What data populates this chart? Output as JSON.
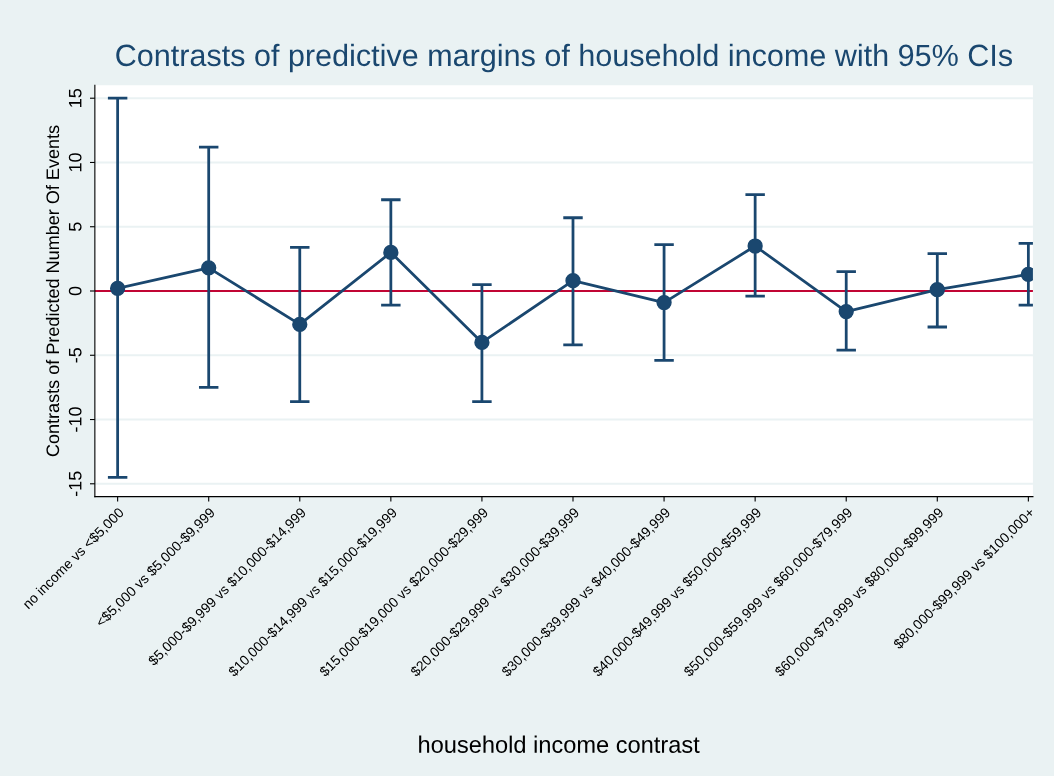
{
  "chart_data": {
    "type": "line",
    "title": "Contrasts of predictive margins of household income with 95% CIs",
    "xlabel": "household income contrast",
    "ylabel": "Contrasts of Predicted Number Of Events",
    "categories": [
      "no income vs <$5,000",
      "<$5,000 vs $5,000-$9,999",
      "$5,000-$9,999 vs $10,000-$14,999",
      "$10,000-$14,999 vs $15,000-$19,999",
      "$15,000-$19,000 vs $20,000-$29,999",
      "$20,000-$29,999 vs $30,000-$39,999",
      "$30,000-$39,999 vs $40,000-$49,999",
      "$40,000-$49,999 vs $50,000-$59,999",
      "$50,000-$59,999 vs $60,000-$79,999",
      "$60,000-$79,999 vs $80,000-$99,999",
      "$80,000-$99,999 vs $100,000+"
    ],
    "series": [
      {
        "color": "#1a476f",
        "values": [
          0.2,
          1.8,
          -2.6,
          3.0,
          -4.0,
          0.8,
          -0.9,
          3.5,
          -1.6,
          0.1,
          1.3
        ],
        "errors": [
          [
            -14.5,
            15.0
          ],
          [
            -7.5,
            11.2
          ],
          [
            -8.6,
            3.4
          ],
          [
            -1.1,
            7.1
          ],
          [
            -8.6,
            0.5
          ],
          [
            -4.2,
            5.7
          ],
          [
            -5.4,
            3.6
          ],
          [
            -0.4,
            7.5
          ],
          [
            -4.6,
            1.5
          ],
          [
            -2.8,
            2.9
          ],
          [
            -1.1,
            3.7
          ]
        ]
      }
    ],
    "ylim": [
      -16,
      16
    ],
    "yticks": [
      -15,
      -10,
      -5,
      0,
      5,
      10,
      15
    ],
    "grid": "y",
    "marker": "circle",
    "line_style": "solid",
    "ref_lines": [
      {
        "axis": "y",
        "value": 0,
        "color": "#c10534"
      }
    ]
  }
}
